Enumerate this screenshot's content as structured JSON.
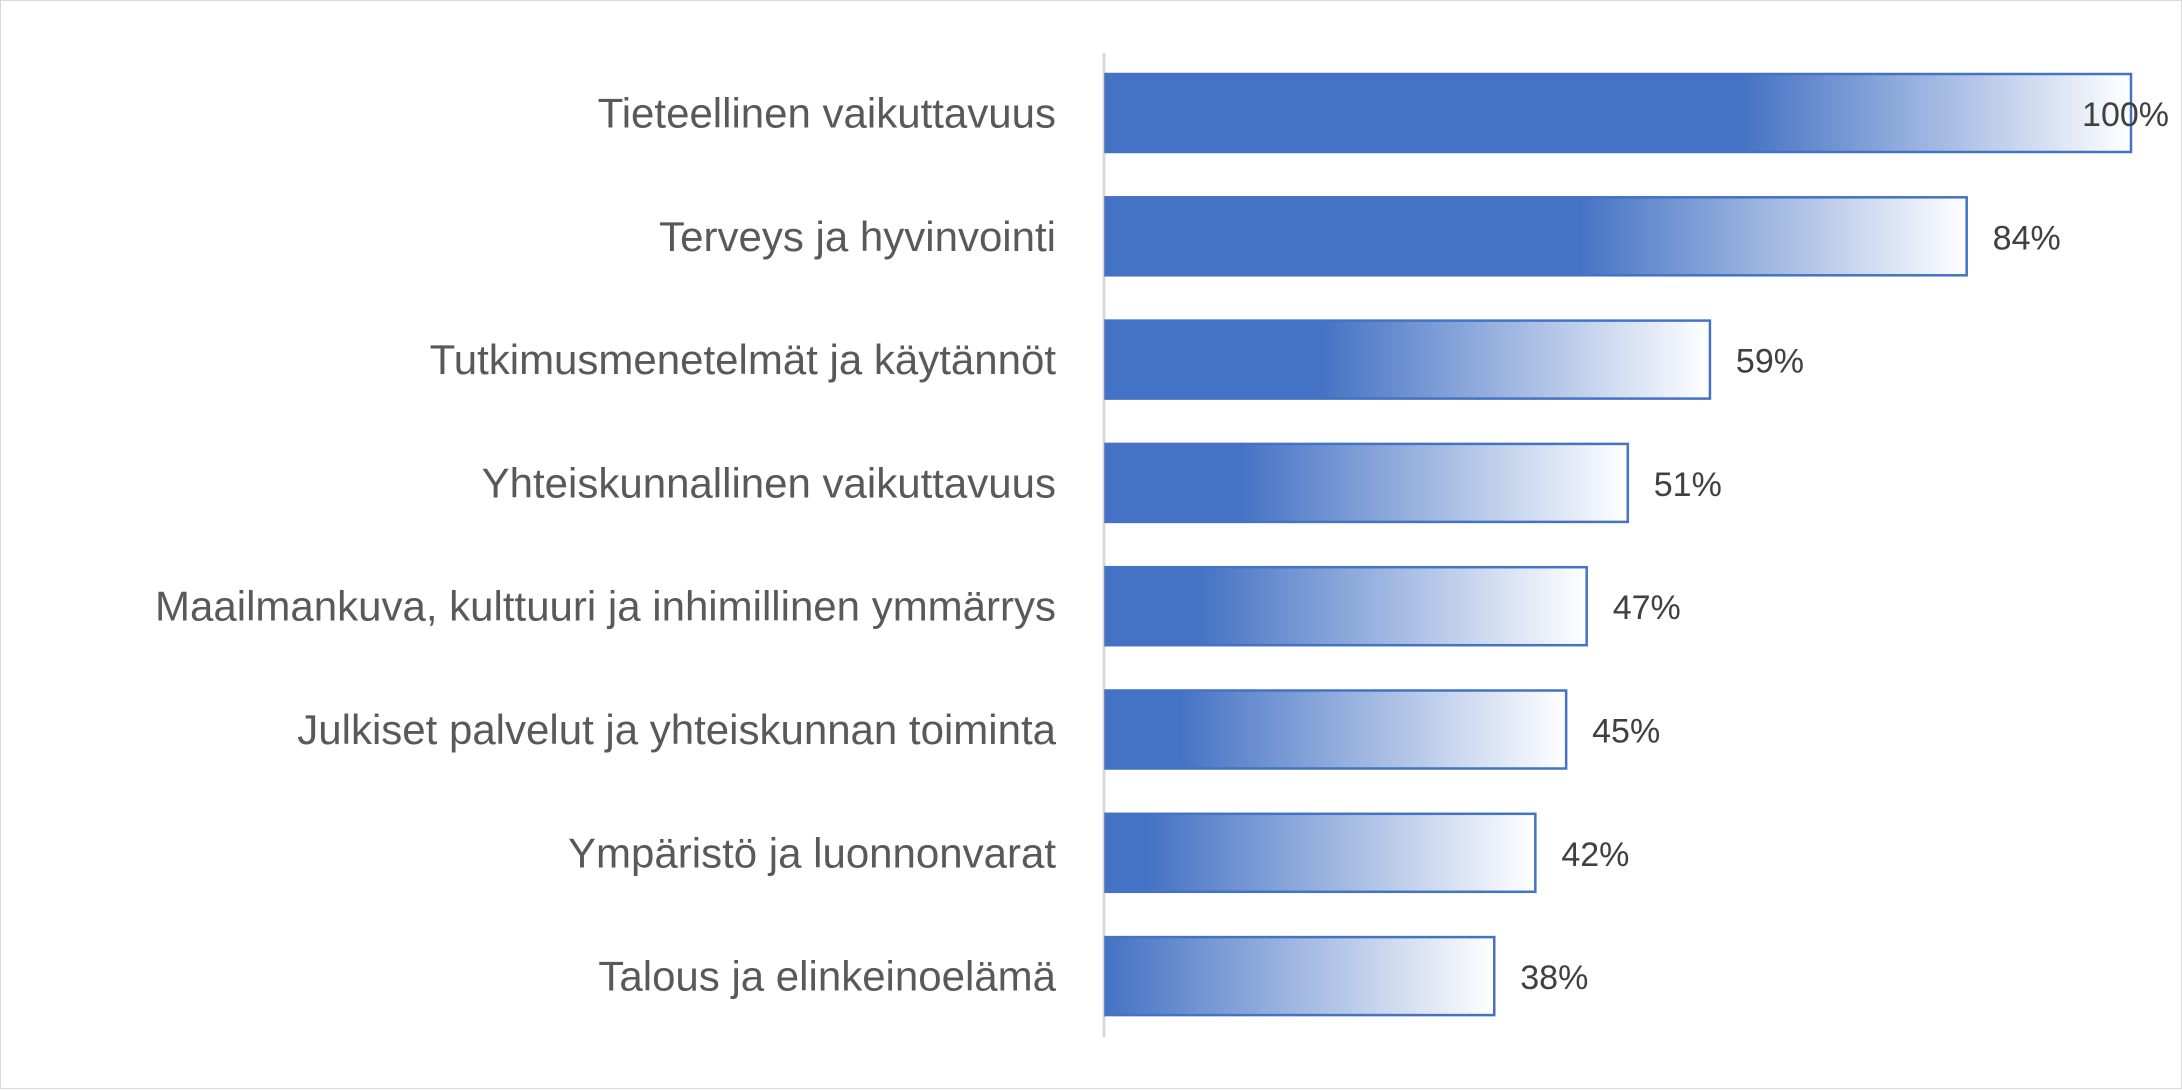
{
  "chart_data": {
    "type": "bar",
    "orientation": "horizontal",
    "title": "",
    "xlabel": "",
    "ylabel": "",
    "categories": [
      "Tieteellinen vaikuttavuus",
      "Terveys ja hyvinvointi",
      "Tutkimusmenetelmät ja käytännöt",
      "Yhteiskunnallinen vaikuttavuus",
      "Maailmankuva, kulttuuri ja inhimillinen ymmärrys",
      "Julkiset palvelut ja yhteiskunnan toiminta",
      "Ympäristö ja luonnonvarat",
      "Talous ja elinkeinoelämä"
    ],
    "values": [
      100,
      84,
      59,
      51,
      47,
      45,
      42,
      38
    ],
    "value_labels": [
      "100%",
      "84%",
      "59%",
      "51%",
      "47%",
      "45%",
      "42%",
      "38%"
    ],
    "unit": "%",
    "xlim": [
      0,
      100
    ],
    "grid": false,
    "legend": "none",
    "colors": {
      "bar_fill": "#4472c4",
      "bar_fade": "#ffffff",
      "bar_border": "#4472c4",
      "axis": "#d9d9d9",
      "category_text": "#595959",
      "value_text": "#404040"
    }
  }
}
